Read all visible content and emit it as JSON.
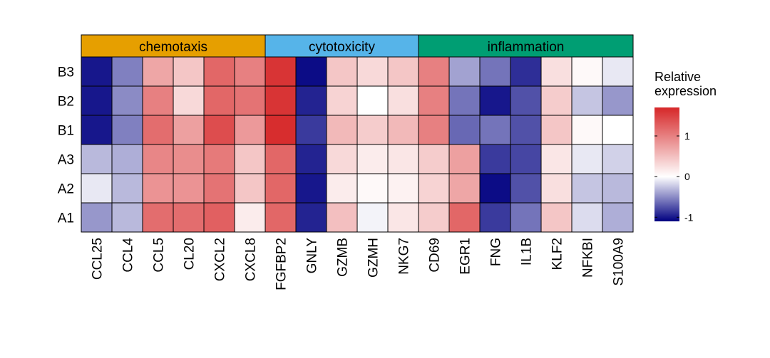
{
  "chart_data": {
    "type": "heatmap",
    "groups": [
      {
        "name": "chemotaxis",
        "color": "#E69F00",
        "columns": [
          "CCL25",
          "CCL4",
          "CCL5",
          "CL20",
          "CXCL2",
          "CXCL8"
        ]
      },
      {
        "name": "cytotoxicity",
        "color": "#56B4E9",
        "columns": [
          "FGFBP2",
          "GNLY",
          "GZMB",
          "GZMH",
          "NKG7"
        ]
      },
      {
        "name": "inflammation",
        "color": "#009E73",
        "columns": [
          "CD69",
          "EGR1",
          "FNG",
          "IL1B",
          "KLF2",
          "NFKBI",
          "S100A9"
        ]
      }
    ],
    "columns": [
      "CCL25",
      "CCL4",
      "CCL5",
      "CL20",
      "CXCL2",
      "CXCL8",
      "FGFBP2",
      "GNLY",
      "GZMB",
      "GZMH",
      "NKG7",
      "CD69",
      "EGR1",
      "FNG",
      "IL1B",
      "KLF2",
      "NFKBI",
      "S100A9"
    ],
    "rows": [
      "B3",
      "B2",
      "B1",
      "A3",
      "A2",
      "A1"
    ],
    "values": [
      [
        -1.0,
        -0.55,
        0.7,
        0.45,
        1.2,
        1.0,
        1.6,
        -1.05,
        0.45,
        0.3,
        0.45,
        1.0,
        -0.4,
        -0.6,
        -0.9,
        0.25,
        0.05,
        -0.1
      ],
      [
        -1.0,
        -0.5,
        1.0,
        0.3,
        1.2,
        1.1,
        1.6,
        -0.95,
        0.35,
        0.0,
        0.25,
        1.0,
        -0.6,
        -1.0,
        -0.75,
        0.4,
        -0.25,
        -0.45
      ],
      [
        -1.0,
        -0.55,
        1.15,
        0.75,
        1.4,
        0.8,
        1.65,
        -0.85,
        0.55,
        0.4,
        0.55,
        1.0,
        -0.65,
        -0.6,
        -0.75,
        0.45,
        0.05,
        0.0
      ],
      [
        -0.3,
        -0.35,
        0.95,
        0.9,
        1.05,
        0.45,
        1.2,
        -0.95,
        0.3,
        0.15,
        0.2,
        0.4,
        0.75,
        -0.85,
        -0.8,
        0.2,
        -0.1,
        -0.2
      ],
      [
        -0.1,
        -0.3,
        0.85,
        0.85,
        1.1,
        0.45,
        1.2,
        -1.0,
        0.15,
        0.05,
        0.1,
        0.35,
        0.7,
        -1.05,
        -0.75,
        0.25,
        -0.25,
        -0.3
      ],
      [
        -0.45,
        -0.3,
        1.15,
        1.15,
        1.25,
        0.15,
        1.2,
        -0.95,
        0.5,
        -0.05,
        0.2,
        0.4,
        1.2,
        -0.85,
        -0.6,
        0.45,
        -0.15,
        -0.35
      ]
    ],
    "color_scale": {
      "low": "#000080",
      "mid": "#FFFFFF",
      "high": "#D62728",
      "min": -1.1,
      "max": 1.7
    },
    "legend": {
      "title_lines": [
        "Relative",
        "expression"
      ],
      "ticks": [
        -1,
        0,
        1
      ],
      "tick_labels": [
        "-1",
        "0",
        "1"
      ],
      "position": "right"
    }
  }
}
